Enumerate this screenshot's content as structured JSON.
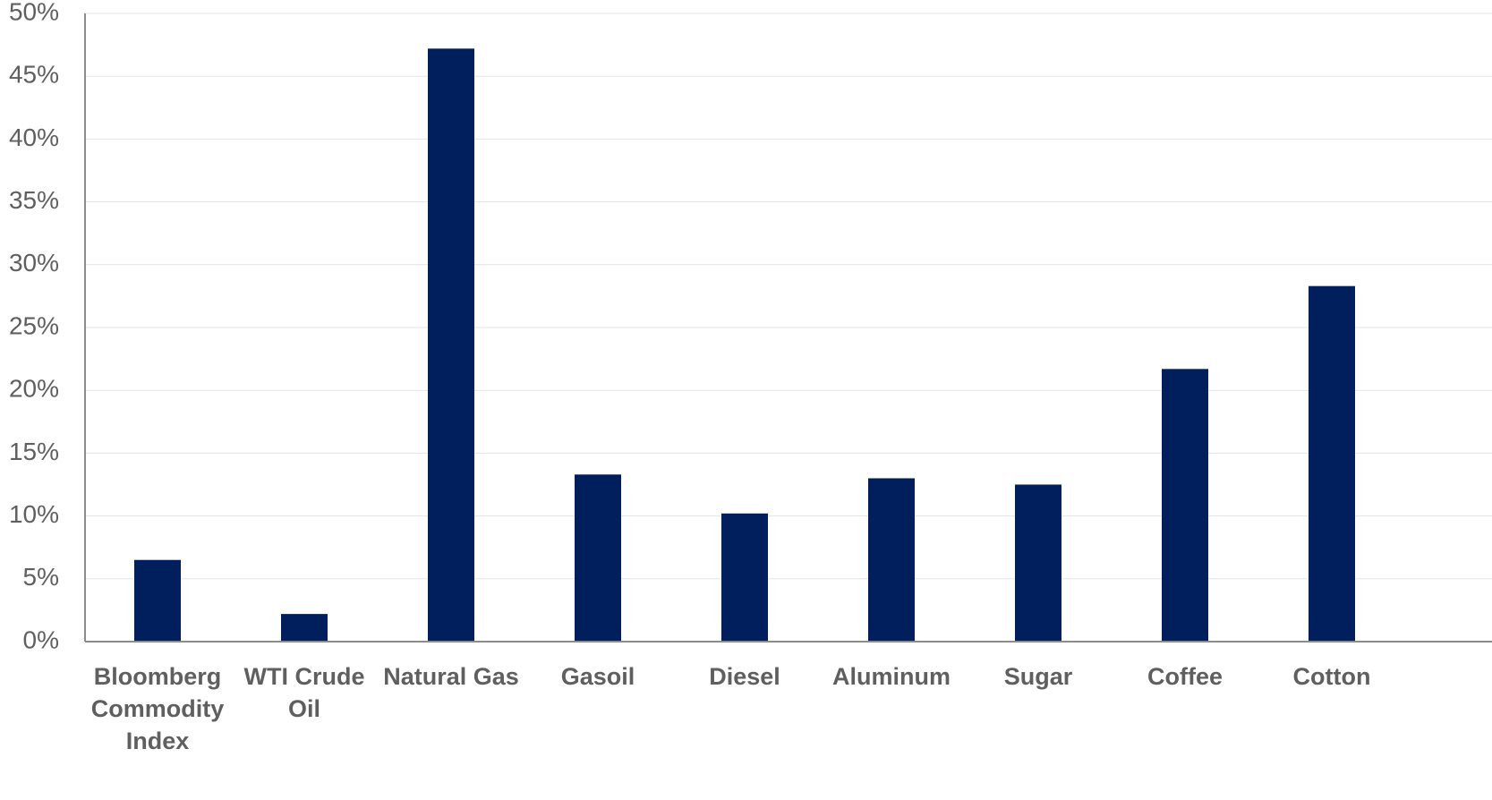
{
  "chart_data": {
    "type": "bar",
    "title": "",
    "xlabel": "",
    "ylabel": "",
    "categories": [
      "Bloomberg Commodity Index",
      "WTI Crude Oil",
      "Natural Gas",
      "Gasoil",
      "Diesel",
      "Aluminum",
      "Sugar",
      "Coffee",
      "Cotton"
    ],
    "category_lines": [
      [
        "Bloomberg",
        "Commodity",
        "Index"
      ],
      [
        "WTI Crude",
        "Oil"
      ],
      [
        "Natural Gas"
      ],
      [
        "Gasoil"
      ],
      [
        "Diesel"
      ],
      [
        "Aluminum"
      ],
      [
        "Sugar"
      ],
      [
        "Coffee"
      ],
      [
        "Cotton"
      ]
    ],
    "values": [
      6.5,
      2.2,
      47.2,
      13.3,
      10.2,
      13.0,
      12.5,
      21.7,
      28.3
    ],
    "ylim": [
      0,
      50
    ],
    "yticks": [
      0,
      5,
      10,
      15,
      20,
      25,
      30,
      35,
      40,
      45,
      50
    ],
    "ytick_labels": [
      "0%",
      "5%",
      "10%",
      "15%",
      "20%",
      "25%",
      "30%",
      "35%",
      "40%",
      "45%",
      "50%"
    ],
    "grid": true,
    "legend": "none",
    "colors": {
      "bar": "#001f5c",
      "grid": "#e3e3e3",
      "axis": "#8c8c8c",
      "text": "#5f5f5f"
    }
  }
}
